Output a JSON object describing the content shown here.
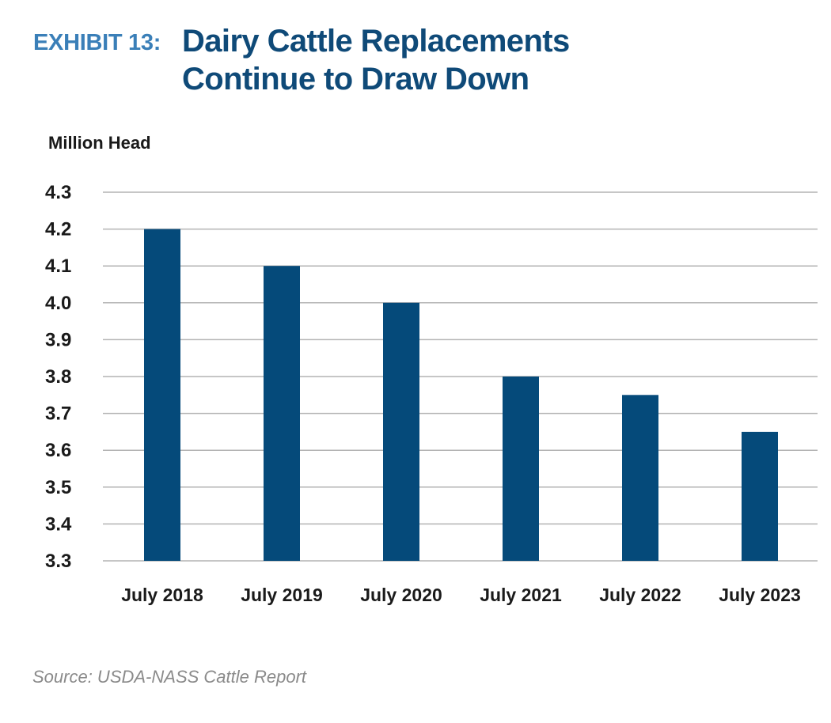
{
  "header": {
    "exhibit_label": "EXHIBIT 13:",
    "title_line1": "Dairy Cattle Replacements",
    "title_line2": "Continue to Draw Down"
  },
  "colors": {
    "exhibit_label": "#3a7fb8",
    "title": "#0f4a78",
    "bar": "#054a7a",
    "gridline": "#b3b3b3",
    "axis_text": "#1a1a1a"
  },
  "chart_data": {
    "type": "bar",
    "title": "Dairy Cattle Replacements Continue to Draw Down",
    "xlabel": "",
    "ylabel": "Million Head",
    "categories": [
      "July 2018",
      "July 2019",
      "July 2020",
      "July 2021",
      "July 2022",
      "July 2023"
    ],
    "values": [
      4.2,
      4.1,
      4.0,
      3.8,
      3.75,
      3.65
    ],
    "ylim": [
      3.3,
      4.3
    ],
    "yticks": [
      "3.3",
      "3.4",
      "3.5",
      "3.6",
      "3.7",
      "3.8",
      "3.9",
      "4.0",
      "4.1",
      "4.2",
      "4.3"
    ],
    "grid": true,
    "legend": "none"
  },
  "source": "Source: USDA-NASS Cattle Report"
}
